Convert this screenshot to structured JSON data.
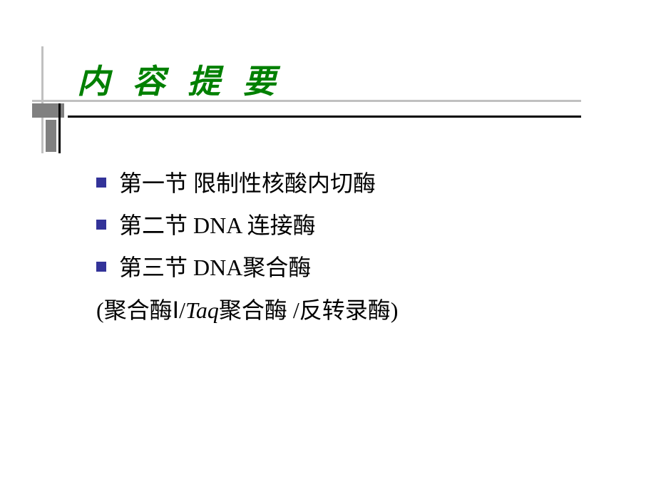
{
  "title": "内 容 提 要",
  "items": [
    {
      "label": "第一节  限制性核酸内切酶"
    },
    {
      "label": "第二节  DNA 连接酶"
    },
    {
      "label": "第三节  DNA聚合酶"
    }
  ],
  "sub_parts": {
    "p1": "(聚合酶Ⅰ/",
    "p2_italic": "Taq",
    "p3": "聚合酶 /反转录酶)"
  },
  "colors": {
    "title": "#008000",
    "bullet": "#333399",
    "body_text": "#000000",
    "decor_gray": "#808080",
    "decor_light": "#c0c0c0",
    "decor_black": "#000000",
    "background": "#ffffff"
  },
  "typography": {
    "title_fontsize": 46,
    "body_fontsize": 32
  }
}
